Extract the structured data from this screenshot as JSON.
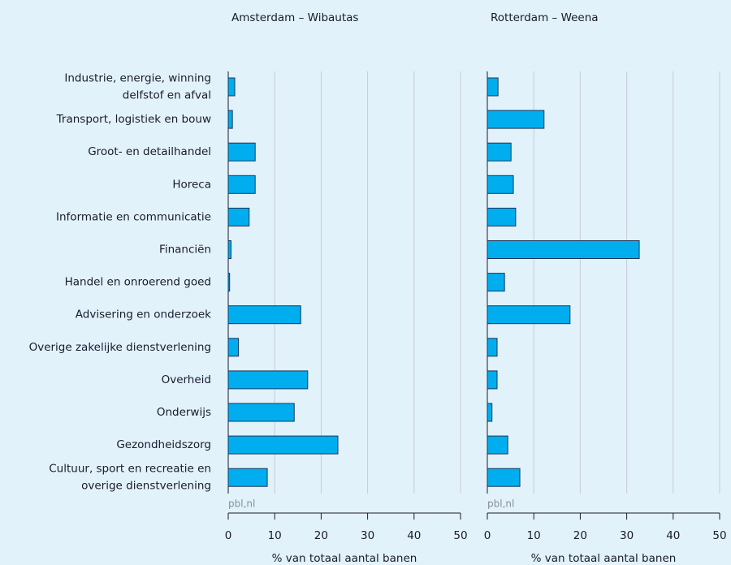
{
  "chart_data": [
    {
      "type": "bar",
      "orientation": "horizontal",
      "title": "Amsterdam – Wibautas",
      "categories": [
        "Industrie, energie, winning\ndelfstof en afval",
        "Transport, logistiek en bouw",
        "Groot- en detailhandel",
        "Horeca",
        "Informatie en communicatie",
        "Financiën",
        "Handel en onroerend goed",
        "Advisering en onderzoek",
        "Overige zakelijke dienstverlening",
        "Overheid",
        "Onderwijs",
        "Gezondheidszorg",
        "Cultuur, sport en recreatie en\noverige dienstverlening"
      ],
      "values": [
        1.4,
        0.9,
        5.8,
        5.8,
        4.5,
        0.6,
        0.3,
        15.6,
        2.2,
        17.1,
        14.2,
        23.6,
        8.4
      ],
      "color": "#00aeef",
      "xlim": [
        0,
        50
      ],
      "xticks": [
        0,
        10,
        20,
        30,
        40,
        50
      ],
      "grid": true,
      "xlabel": "% van totaal aantal banen",
      "source": "pbl,nl"
    },
    {
      "type": "bar",
      "orientation": "horizontal",
      "title": "Rotterdam – Weena",
      "values": [
        2.3,
        12.2,
        5.1,
        5.6,
        6.1,
        32.7,
        3.7,
        17.8,
        2.1,
        2.1,
        1.0,
        4.4,
        7.0
      ],
      "color": "#00aeef",
      "xlim": [
        0,
        50
      ],
      "xticks": [
        0,
        10,
        20,
        30,
        40,
        50
      ],
      "grid": true,
      "xlabel": "% van totaal aantal banen",
      "source": "pbl,nl"
    }
  ]
}
